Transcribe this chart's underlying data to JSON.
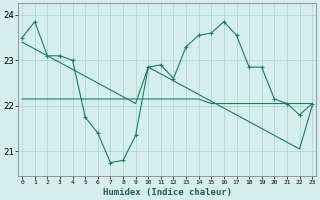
{
  "xlabel": "Humidex (Indice chaleur)",
  "x": [
    0,
    1,
    2,
    3,
    4,
    5,
    6,
    7,
    8,
    9,
    10,
    11,
    12,
    13,
    14,
    15,
    16,
    17,
    18,
    19,
    20,
    21,
    22,
    23
  ],
  "line1_y": [
    23.5,
    23.85,
    23.1,
    23.1,
    23.0,
    21.75,
    21.4,
    20.75,
    20.8,
    21.35,
    22.85,
    22.9,
    22.6,
    23.3,
    23.55,
    23.6,
    23.85,
    23.55,
    22.85,
    22.85,
    22.15,
    22.05,
    21.8,
    22.05
  ],
  "line2_y": [
    22.15,
    22.15,
    22.15,
    22.15,
    22.15,
    22.15,
    22.15,
    22.15,
    22.15,
    22.15,
    22.15,
    22.15,
    22.15,
    22.15,
    22.15,
    22.05,
    22.05,
    22.05,
    22.05,
    22.05,
    22.05,
    22.05,
    22.05,
    22.05
  ],
  "line3_y": [
    23.4,
    23.25,
    23.1,
    22.95,
    22.8,
    22.65,
    22.5,
    22.35,
    22.2,
    22.05,
    22.85,
    22.7,
    22.55,
    22.4,
    22.25,
    22.1,
    21.95,
    21.8,
    21.65,
    21.5,
    21.35,
    21.2,
    21.05,
    22.0
  ],
  "background_color": "#d6efed",
  "grid_color": "#aed8d4",
  "line_color": "#1a7a6e",
  "ylim": [
    20.45,
    24.25
  ],
  "yticks": [
    21,
    22,
    23,
    24
  ],
  "xlim": [
    -0.3,
    23.3
  ]
}
